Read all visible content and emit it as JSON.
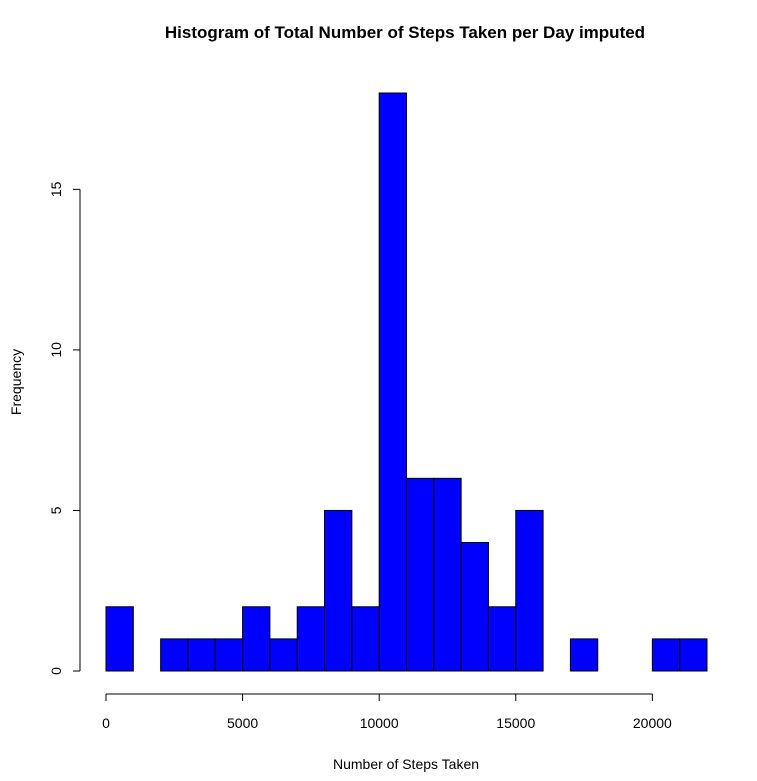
{
  "chart_data": {
    "type": "bar",
    "title": "Histogram of Total Number of Steps Taken per Day imputed",
    "xlabel": "Number of Steps Taken",
    "ylabel": "Frequency",
    "bin_width": 1000,
    "bin_starts": [
      0,
      1000,
      2000,
      3000,
      4000,
      5000,
      6000,
      7000,
      8000,
      9000,
      10000,
      11000,
      12000,
      13000,
      14000,
      15000,
      16000,
      17000,
      18000,
      19000,
      20000,
      21000
    ],
    "values": [
      2,
      0,
      1,
      1,
      1,
      2,
      1,
      2,
      5,
      2,
      18,
      6,
      6,
      4,
      2,
      5,
      0,
      1,
      0,
      0,
      1,
      1
    ],
    "xlim": [
      0,
      22000
    ],
    "ylim": [
      0,
      18
    ],
    "x_ticks": [
      0,
      5000,
      10000,
      15000,
      20000
    ],
    "x_tick_labels": [
      "0",
      "5000",
      "10000",
      "15000",
      "20000"
    ],
    "y_ticks": [
      0,
      5,
      10,
      15
    ],
    "y_tick_labels": [
      "0",
      "5",
      "10",
      "15"
    ],
    "bar_color": "#0000ff",
    "grid": false,
    "legend": "none"
  }
}
